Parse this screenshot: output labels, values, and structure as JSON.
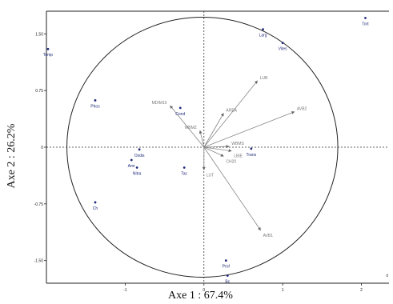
{
  "chart_data": {
    "type": "scatter",
    "title": "",
    "xlabel": "Axe 1 : 67.4%",
    "ylabel": "Axe 2 : 26.2%",
    "xlim": [
      -2,
      2.35
    ],
    "ylim": [
      -1.8,
      1.8
    ],
    "x_ticks": [
      {
        "value": -1,
        "label": "-1"
      },
      {
        "value": 0,
        "label": "0"
      },
      {
        "value": 1,
        "label": "1"
      },
      {
        "value": 2,
        "label": "2"
      }
    ],
    "y_ticks": [
      {
        "value": 1.5,
        "label": "1.50"
      },
      {
        "value": 0.75,
        "label": "0.75"
      },
      {
        "value": 0,
        "label": "0"
      },
      {
        "value": -0.75,
        "label": "-0.75"
      },
      {
        "value": -1.5,
        "label": "-1.50"
      }
    ],
    "correlation_circle": {
      "cx": -0.02,
      "cy": 0.0,
      "r": 1.72
    },
    "observations": [
      {
        "label": "Tort",
        "x": 2.05,
        "y": 1.71
      },
      {
        "label": "Larg",
        "x": 0.75,
        "y": 1.56
      },
      {
        "label": "Vites",
        "x": 1.0,
        "y": 1.38
      },
      {
        "label": "Temp",
        "x": -1.98,
        "y": 1.3
      },
      {
        "label": "Phos",
        "x": -1.38,
        "y": 0.62
      },
      {
        "label": "Cond",
        "x": -0.3,
        "y": 0.52
      },
      {
        "label": "Oxdis",
        "x": -0.82,
        "y": -0.03
      },
      {
        "label": "Amr",
        "x": -0.92,
        "y": -0.17
      },
      {
        "label": "Nitra",
        "x": -0.85,
        "y": -0.27
      },
      {
        "label": "Tac",
        "x": -0.25,
        "y": -0.27
      },
      {
        "label": "Ch",
        "x": -1.38,
        "y": -0.73
      },
      {
        "label": "Prof",
        "x": 0.28,
        "y": -1.5
      },
      {
        "label": "Bc",
        "x": 0.3,
        "y": -1.7
      },
      {
        "label": "Trans",
        "x": 0.6,
        "y": -0.02
      }
    ],
    "variables": [
      {
        "label": "LUB",
        "x": 0.68,
        "y": 0.88
      },
      {
        "label": "AVB2",
        "x": 1.15,
        "y": 0.47
      },
      {
        "label": "AREA",
        "x": 0.25,
        "y": 0.45
      },
      {
        "label": "WBMZ",
        "x": -0.05,
        "y": 0.22
      },
      {
        "label": "MDIM10",
        "x": -0.43,
        "y": 0.55
      },
      {
        "label": "WBMS",
        "x": 0.32,
        "y": 0.01
      },
      {
        "label": "LBIE",
        "x": 0.35,
        "y": -0.05
      },
      {
        "label": "CH20",
        "x": 0.25,
        "y": -0.12
      },
      {
        "label": "LUT",
        "x": 0.0,
        "y": -0.3
      },
      {
        "label": "AVB1",
        "x": 0.72,
        "y": -1.1
      }
    ],
    "corner_label": "d"
  },
  "colors": {
    "observation": "#1f2a7a",
    "variable": "#777777",
    "axis": "#333333"
  }
}
